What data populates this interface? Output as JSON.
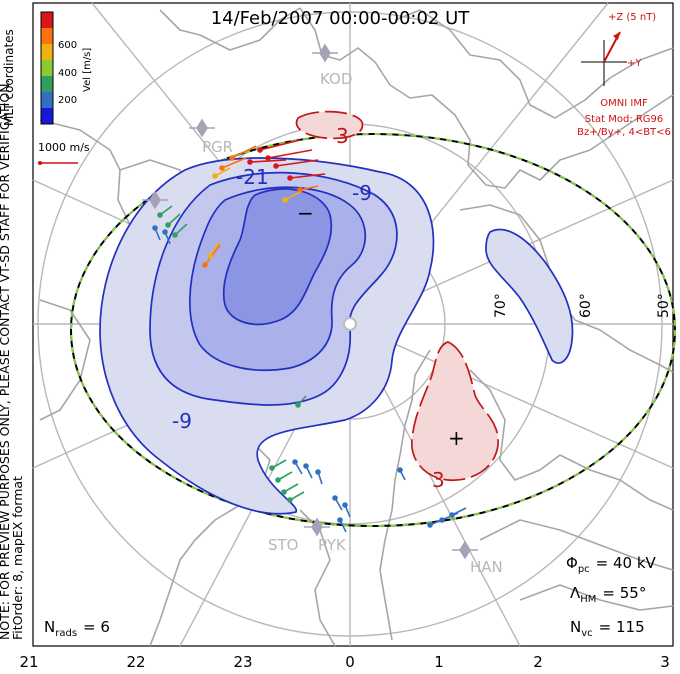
{
  "title": "14/Feb/2007 00:00-00:02 UT",
  "side_notes": {
    "line1": "NOTE: FOR PREVIEW PURPOSES ONLY, PLEASE CONTACT VT-SD STAFF FOR VERIFICATION.",
    "line2": "FitOrder: 8, mapEX format"
  },
  "mlt_label": "MLT coordinates",
  "colorbar": {
    "label": "Vel [m/s]",
    "ticks": [
      "600",
      "400",
      "200"
    ],
    "colors": [
      "#d81818",
      "#ff7010",
      "#f0b010",
      "#88cc30",
      "#30a060",
      "#3070c0",
      "#1818d8"
    ]
  },
  "reference_vector": {
    "label": "1000 m/s",
    "color": "#d01010"
  },
  "imf": {
    "z_label": "+Z (5 nT)",
    "y_label": "+Y",
    "source": "OMNI IMF",
    "model": "Stat Mod: RG96",
    "conditions": "Bz+/By+, 4<BT<6",
    "color": "#d01010"
  },
  "contour_labels": {
    "neg_inner": "-21",
    "neg_outer": "-9",
    "neg_left": "-9",
    "neg_min_symbol": "−",
    "pos_top": "3",
    "pos_bottom": "3",
    "pos_max_symbol": "+"
  },
  "latitude_labels": [
    "70°",
    "60°",
    "50°"
  ],
  "stations": [
    "KOD",
    "PGR",
    "STO",
    "PYK",
    "HAN"
  ],
  "mlt_ticks": [
    "21",
    "22",
    "23",
    "0",
    "1",
    "2",
    "3"
  ],
  "stats": {
    "phi_pc_symbol": "Φ",
    "phi_pc_sub": "pc",
    "phi_pc_value": "= 40 kV",
    "lambda_hm_symbol": "Λ",
    "lambda_hm_sub": "HM",
    "lambda_hm_value": "= 55°",
    "n_vc_symbol": "N",
    "n_vc_sub": "vc",
    "n_vc_value": "= 115",
    "n_rads_symbol": "N",
    "n_rads_sub": "rads",
    "n_rads_value": "= 6"
  },
  "colors": {
    "convection_negative": "#2030c0",
    "convection_positive": "#c01818",
    "fill_neg_1": "#dadcf0",
    "fill_neg_2": "#c4c8ee",
    "fill_neg_3": "#aab0ea",
    "fill_neg_4": "#8c94e4",
    "fill_pos": "#f4d8d8",
    "coastline": "#a6a6a6",
    "grid": "#b8b8b8",
    "hm_boundary_dash": "#88cc44"
  }
}
